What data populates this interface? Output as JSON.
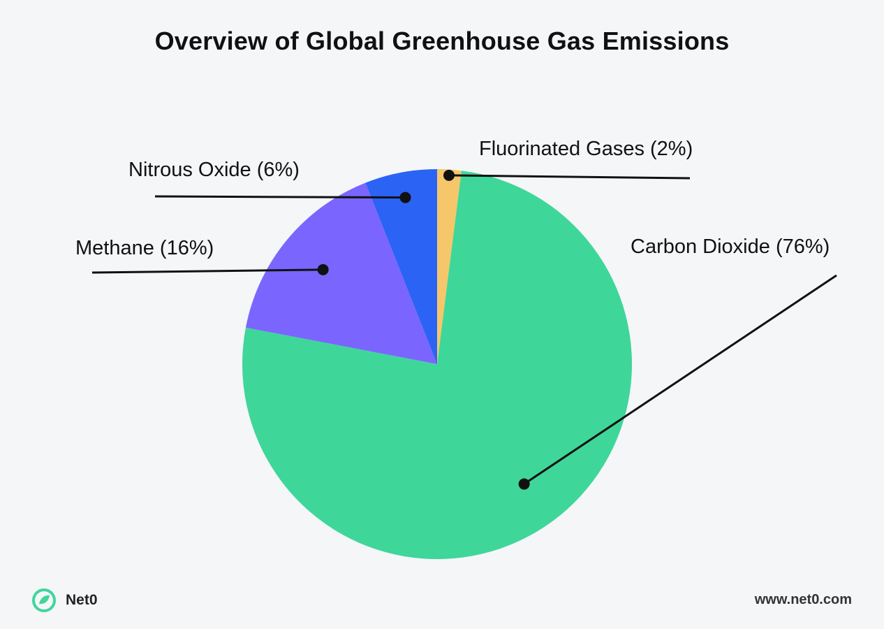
{
  "chart_data": {
    "type": "pie",
    "title": "Overview of Global Greenhouse Gas Emissions",
    "slices": [
      {
        "name": "Fluorinated Gases",
        "value": 2,
        "label": "Fluorinated Gases (2%)",
        "color": "#f5c76a",
        "label_side": "right"
      },
      {
        "name": "Carbon Dioxide",
        "value": 76,
        "label": "Carbon Dioxide (76%)",
        "color": "#3fd69a",
        "label_side": "right"
      },
      {
        "name": "Methane",
        "value": 16,
        "label": "Methane (16%)",
        "color": "#7a66ff",
        "label_side": "left"
      },
      {
        "name": "Nitrous Oxide",
        "value": 6,
        "label": "Nitrous Oxide (6%)",
        "color": "#2b63f5",
        "label_side": "left"
      }
    ]
  },
  "footer": {
    "brand_name": "Net0",
    "brand_logo_icon": "net0-leaf-logo-icon",
    "brand_color": "#3fd69a",
    "url": "www.net0.com"
  }
}
